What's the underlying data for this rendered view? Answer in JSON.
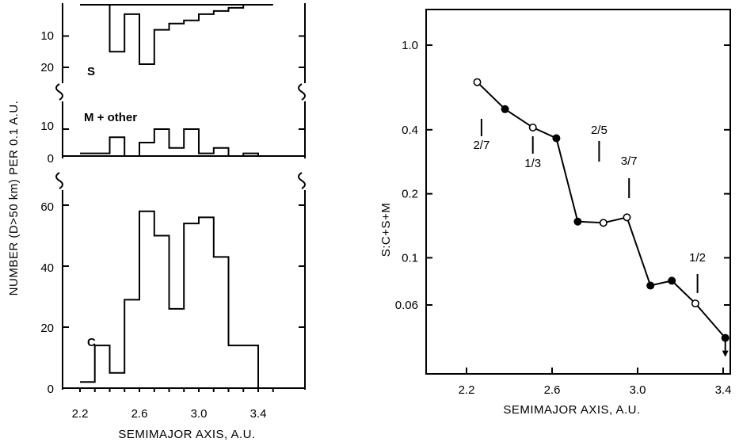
{
  "chart_data": [
    {
      "type": "bar",
      "subtype": "histogram",
      "xlabel": "SEMIMAJOR AXIS, A.U.",
      "ylabel": "NUMBER  (D>50 km) PER 0.1 A.U.",
      "x_ticks": [
        "2.2",
        "2.6",
        "3.0",
        "3.4"
      ],
      "bin_edges": [
        2.2,
        2.3,
        2.4,
        2.5,
        2.6,
        2.7,
        2.8,
        2.9,
        3.0,
        3.1,
        3.2,
        3.3,
        3.4,
        3.5
      ],
      "panels": [
        {
          "name": "S",
          "y_inverted": true,
          "y_ticks": [
            "10",
            "20"
          ],
          "ylim": [
            0,
            24
          ],
          "values": [
            0,
            0,
            15,
            3,
            19,
            8,
            6,
            5,
            3,
            2,
            1,
            0,
            0
          ]
        },
        {
          "name": "M + other",
          "y_ticks": [
            "0",
            "10"
          ],
          "ylim": [
            0,
            13
          ],
          "values": [
            1,
            1,
            7,
            0,
            5,
            10,
            3,
            10,
            1,
            3,
            0,
            1,
            0
          ]
        },
        {
          "name": "C",
          "y_ticks": [
            "0",
            "20",
            "40",
            "60"
          ],
          "ylim": [
            0,
            66
          ],
          "values": [
            2,
            14,
            5,
            29,
            58,
            50,
            26,
            54,
            56,
            43,
            14,
            14,
            0
          ]
        }
      ]
    },
    {
      "type": "line",
      "xlabel": "SEMIMAJOR AXIS, A.U.",
      "ylabel": "S:C+S+M",
      "y_scale": "log",
      "x_ticks": [
        "2.2",
        "2.6",
        "3.0",
        "3.4"
      ],
      "y_ticks": [
        "1.0",
        "0.4",
        "0.2",
        "0.1",
        "0.06"
      ],
      "xlim": [
        2.12,
        3.5
      ],
      "ylim": [
        0.033,
        1.12
      ],
      "points": [
        {
          "x": 2.25,
          "y": 0.67,
          "marker": "open"
        },
        {
          "x": 2.38,
          "y": 0.5,
          "marker": "filled"
        },
        {
          "x": 2.51,
          "y": 0.41,
          "marker": "open"
        },
        {
          "x": 2.62,
          "y": 0.365,
          "marker": "filled"
        },
        {
          "x": 2.72,
          "y": 0.148,
          "marker": "filled"
        },
        {
          "x": 2.84,
          "y": 0.146,
          "marker": "open"
        },
        {
          "x": 2.95,
          "y": 0.155,
          "marker": "open"
        },
        {
          "x": 3.06,
          "y": 0.074,
          "marker": "filled"
        },
        {
          "x": 3.16,
          "y": 0.078,
          "marker": "filled"
        },
        {
          "x": 3.27,
          "y": 0.061,
          "marker": "open"
        },
        {
          "x": 3.41,
          "y": 0.042,
          "marker": "filled",
          "upper_limit": true
        }
      ],
      "annotations": [
        {
          "text": "2/7",
          "x": 2.27
        },
        {
          "text": "1/3",
          "x": 2.51
        },
        {
          "text": "2/5",
          "x": 2.82
        },
        {
          "text": "3/7",
          "x": 2.96
        },
        {
          "text": "1/2",
          "x": 3.28
        }
      ]
    }
  ]
}
